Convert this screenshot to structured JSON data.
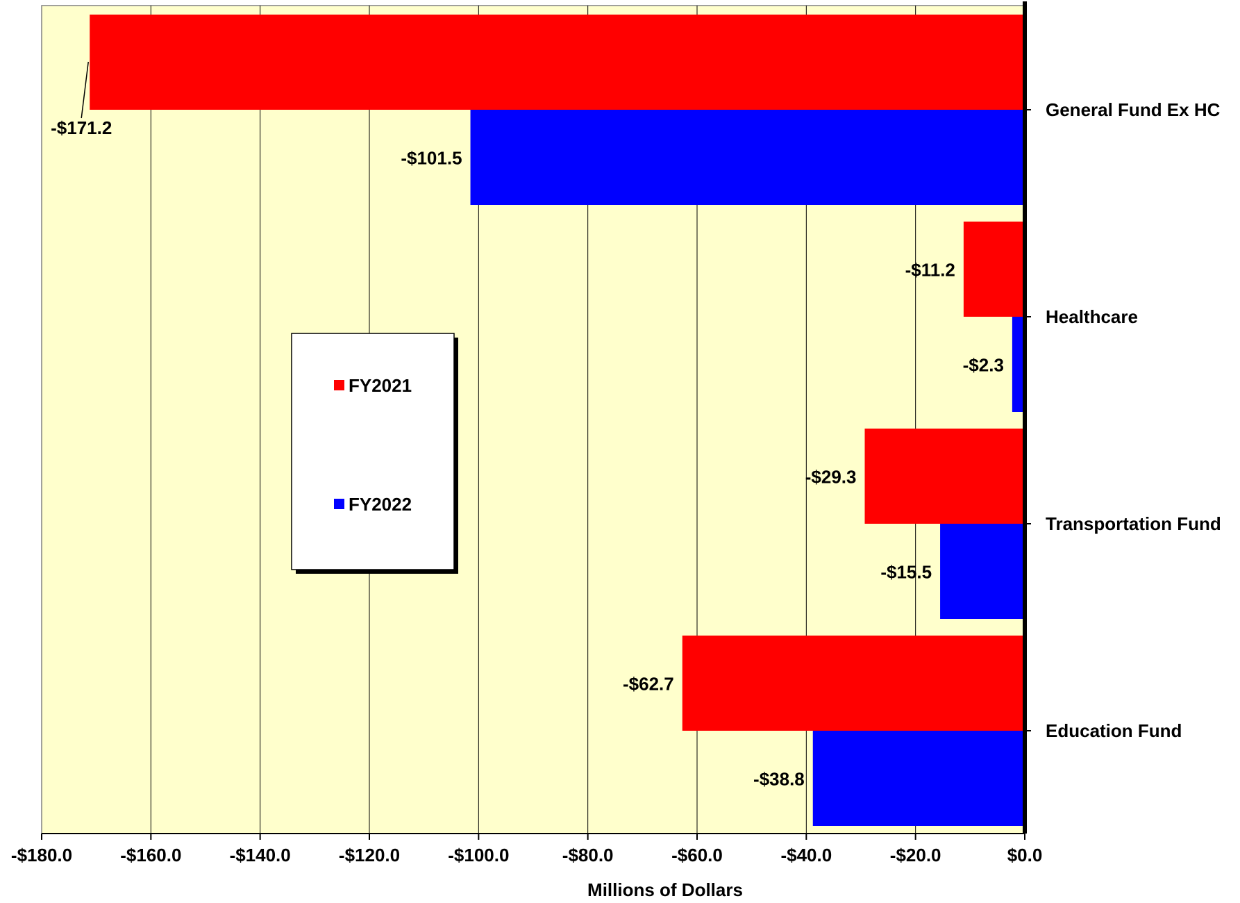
{
  "chart_data": {
    "type": "bar",
    "orientation": "horizontal",
    "title": "",
    "xlabel": "Millions of Dollars",
    "ylabel": "",
    "xlim": [
      -180,
      0
    ],
    "x_ticks": [
      -180,
      -160,
      -140,
      -120,
      -100,
      -80,
      -60,
      -40,
      -20,
      0
    ],
    "x_tick_labels": [
      "-$180.0",
      "-$160.0",
      "-$140.0",
      "-$120.0",
      "-$100.0",
      "-$80.0",
      "-$60.0",
      "-$40.0",
      "-$20.0",
      "$0.0"
    ],
    "grid": true,
    "legend_position": "center-left",
    "categories": [
      "General Fund Ex HC",
      "Healthcare",
      "Transportation Fund",
      "Education Fund"
    ],
    "series": [
      {
        "name": "FY2021",
        "color": "#ff0000",
        "values": [
          -171.2,
          -11.2,
          -29.3,
          -62.7
        ],
        "labels": [
          "-$171.2",
          "-$11.2",
          "-$29.3",
          "-$62.7"
        ]
      },
      {
        "name": "FY2022",
        "color": "#0000ff",
        "values": [
          -101.5,
          -2.3,
          -15.5,
          -38.8
        ],
        "labels": [
          "-$101.5",
          "-$2.3",
          "-$15.5",
          "-$38.8"
        ]
      }
    ],
    "plot_background": "#ffffcc"
  }
}
